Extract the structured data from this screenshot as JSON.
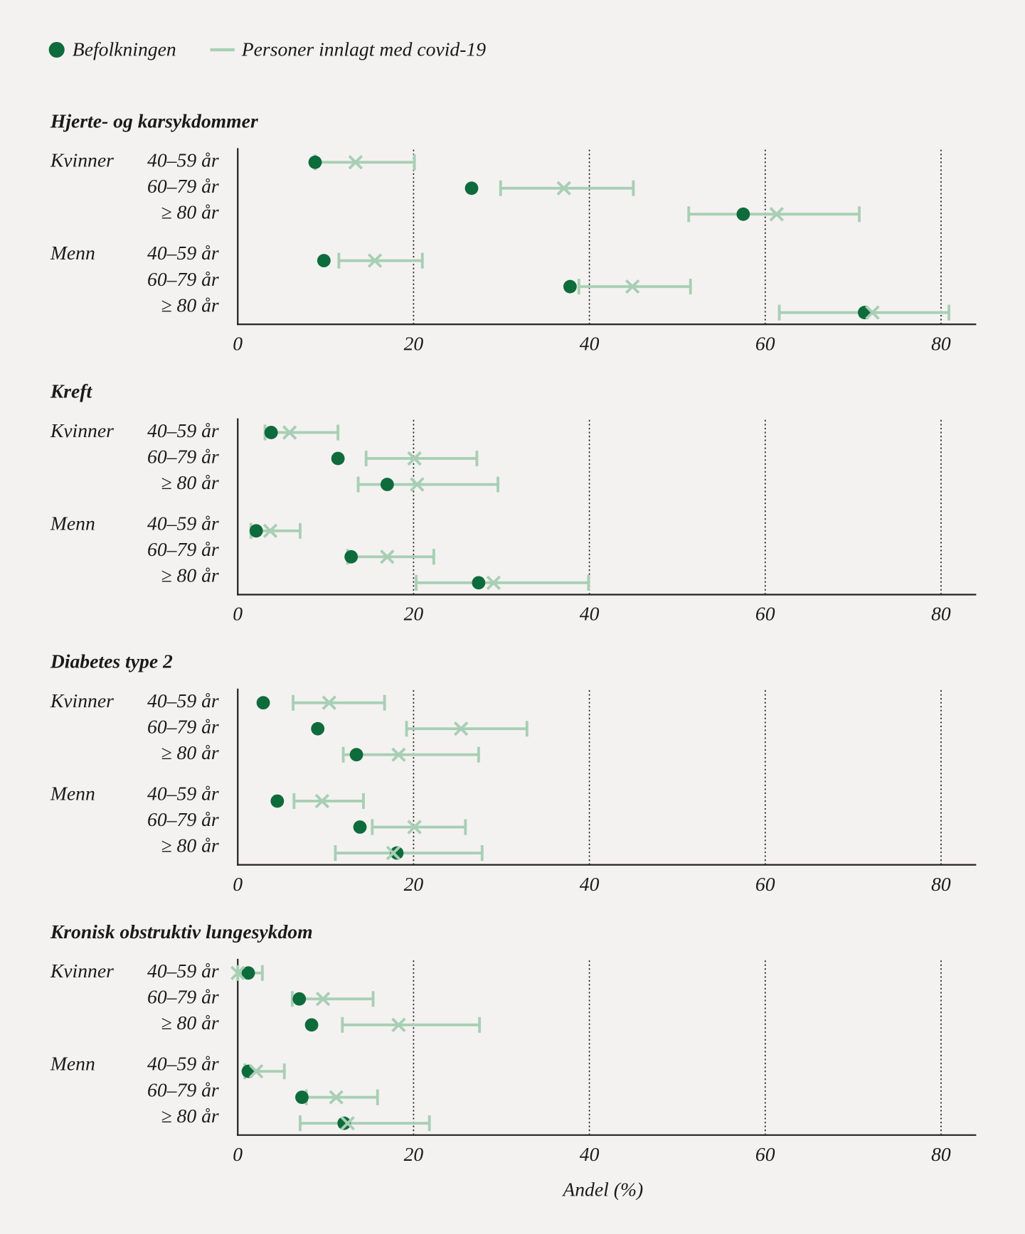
{
  "legend": [
    {
      "name": "Befolkningen",
      "color": "#0e6b3c",
      "marker": "dot"
    },
    {
      "name": "Personer innlagt med covid-19",
      "color": "#a8cfb5",
      "marker": "cross"
    }
  ],
  "chart_data": [
    {
      "type": "dot-interval",
      "title": "Hjerte- og karsykdommer",
      "groups": [
        "Kvinner",
        "Menn"
      ],
      "categories": [
        [
          "40–59 år",
          "60–79 år",
          "≥ 80 år"
        ],
        [
          "40–59 år",
          "60–79 år",
          "≥ 80 år"
        ]
      ],
      "series": [
        {
          "values": [
            [
              8.8,
              26.6,
              57.5
            ],
            [
              9.8,
              37.8,
              71.3
            ]
          ]
        },
        {
          "values": [
            [
              13.4,
              37.1,
              61.3
            ],
            [
              15.6,
              44.9,
              72.2
            ]
          ],
          "low": [
            [
              8.8,
              29.9,
              51.3
            ],
            [
              11.5,
              38.8,
              61.6
            ]
          ],
          "high": [
            [
              20.1,
              45.0,
              70.7
            ],
            [
              21.0,
              51.5,
              80.9
            ]
          ]
        }
      ],
      "xlim": [
        0,
        84
      ],
      "xticks": [
        0,
        20,
        40,
        60,
        80
      ],
      "grid": true
    },
    {
      "type": "dot-interval",
      "title": "Kreft",
      "groups": [
        "Kvinner",
        "Menn"
      ],
      "categories": [
        [
          "40–59 år",
          "60–79 år",
          "≥ 80 år"
        ],
        [
          "40–59 år",
          "60–79 år",
          "≥ 80 år"
        ]
      ],
      "series": [
        {
          "values": [
            [
              3.8,
              11.4,
              17.0
            ],
            [
              2.1,
              12.9,
              27.4
            ]
          ]
        },
        {
          "values": [
            [
              5.9,
              20.1,
              20.4
            ],
            [
              3.7,
              17.0,
              29.1
            ]
          ],
          "low": [
            [
              3.1,
              14.6,
              13.7
            ],
            [
              1.5,
              12.5,
              20.3
            ]
          ],
          "high": [
            [
              11.4,
              27.2,
              29.6
            ],
            [
              7.1,
              22.3,
              39.9
            ]
          ]
        }
      ],
      "xlim": [
        0,
        84
      ],
      "xticks": [
        0,
        20,
        40,
        60,
        80
      ],
      "grid": true
    },
    {
      "type": "dot-interval",
      "title": "Diabetes type 2",
      "groups": [
        "Kvinner",
        "Menn"
      ],
      "categories": [
        [
          "40–59 år",
          "60–79 år",
          "≥ 80 år"
        ],
        [
          "40–59 år",
          "60–79 år",
          "≥ 80 år"
        ]
      ],
      "series": [
        {
          "values": [
            [
              2.9,
              9.1,
              13.5
            ],
            [
              4.5,
              13.9,
              18.1
            ]
          ]
        },
        {
          "values": [
            [
              10.4,
              25.4,
              18.3
            ],
            [
              9.6,
              20.1,
              17.7
            ]
          ],
          "low": [
            [
              6.3,
              19.2,
              12.0
            ],
            [
              6.4,
              15.3,
              11.1
            ]
          ],
          "high": [
            [
              16.7,
              32.9,
              27.4
            ],
            [
              14.3,
              25.9,
              27.8
            ]
          ]
        }
      ],
      "xlim": [
        0,
        84
      ],
      "xticks": [
        0,
        20,
        40,
        60,
        80
      ],
      "grid": true
    },
    {
      "type": "dot-interval",
      "title": "Kronisk obstruktiv lungesykdom",
      "groups": [
        "Kvinner",
        "Menn"
      ],
      "categories": [
        [
          "40–59 år",
          "60–79 år",
          "≥ 80 år"
        ],
        [
          "40–59 år",
          "60–79 år",
          "≥ 80 år"
        ]
      ],
      "series": [
        {
          "values": [
            [
              1.2,
              7.0,
              8.4
            ],
            [
              1.2,
              7.3,
              12.1
            ]
          ]
        },
        {
          "values": [
            [
              0,
              9.7,
              18.3
            ],
            [
              2.1,
              11.2,
              12.5
            ]
          ],
          "low": [
            [
              0,
              6.2,
              11.9
            ],
            [
              0.8,
              7.8,
              7.1
            ]
          ],
          "high": [
            [
              2.8,
              15.4,
              27.5
            ],
            [
              5.3,
              15.9,
              21.8
            ]
          ]
        }
      ],
      "xlim": [
        0,
        84
      ],
      "xticks": [
        0,
        20,
        40,
        60,
        80
      ],
      "grid": true,
      "xlabel": "Andel (%)"
    }
  ]
}
